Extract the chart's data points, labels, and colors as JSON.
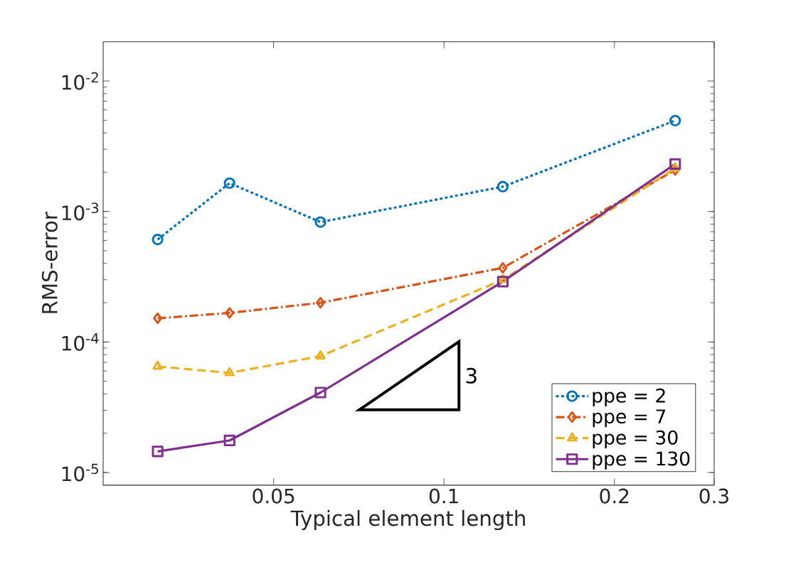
{
  "chart_data": {
    "type": "line",
    "xlabel": "Typical element length",
    "ylabel": "RMS-error",
    "log": "xy",
    "xlim": [
      0.025,
      0.3
    ],
    "ylim": [
      8e-06,
      0.02
    ],
    "xticks": [
      0.05,
      0.1,
      0.2,
      0.3
    ],
    "yticks": [
      {
        "value": 1e-05,
        "label": "10$^{-5}$"
      },
      {
        "value": 0.0001,
        "label": "10$^{-4}$"
      },
      {
        "value": 0.001,
        "label": "10$^{-3}$"
      },
      {
        "value": 0.01,
        "label": "10$^{-2}$"
      }
    ],
    "x": [
      0.0312,
      0.0418,
      0.0605,
      0.127,
      0.256
    ],
    "legend": "bottom right",
    "series": [
      {
        "name": "ppe = 2",
        "color": "#0072bd",
        "marker": "circle",
        "line_style": "dotted",
        "values": [
          0.00061,
          0.00165,
          0.00083,
          0.00155,
          0.00497
        ]
      },
      {
        "name": "ppe = 7",
        "color": "#d95319",
        "marker": "diamond",
        "line_style": "dashdot",
        "values": [
          0.000152,
          0.000167,
          0.0002,
          0.00037,
          0.00208
        ]
      },
      {
        "name": "ppe = 30",
        "color": "#edb120",
        "marker": "triangle",
        "line_style": "dashed",
        "values": [
          6.5e-05,
          5.8e-05,
          7.8e-05,
          0.0003,
          0.00215
        ]
      },
      {
        "name": "ppe = 130",
        "color": "#7e2f8e",
        "marker": "square",
        "line_style": "solid",
        "values": [
          1.45e-05,
          1.76e-05,
          4.1e-05,
          0.00029,
          0.00231
        ]
      }
    ],
    "annotations": [
      "3"
    ]
  }
}
